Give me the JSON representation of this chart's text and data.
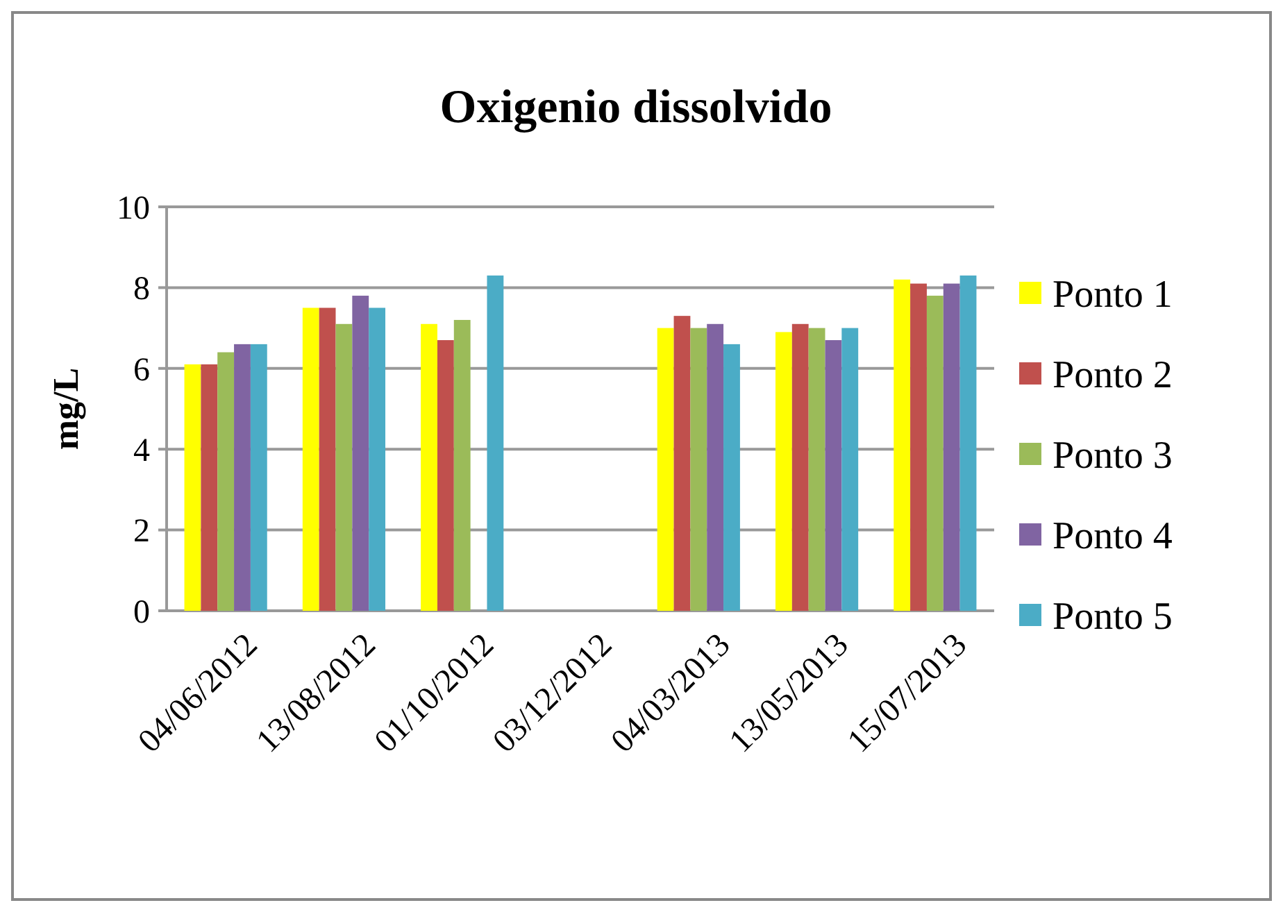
{
  "chart_data": {
    "type": "bar",
    "title": "Oxigenio dissolvido",
    "ylabel": "mg/L",
    "categories": [
      "04/06/2012",
      "13/08/2012",
      "01/10/2012",
      "03/12/2012",
      "04/03/2013",
      "13/05/2013",
      "15/07/2013"
    ],
    "series": [
      {
        "name": "Ponto 1",
        "color": "#ffff00",
        "values": [
          6.1,
          7.5,
          7.1,
          null,
          7.0,
          6.9,
          8.2
        ]
      },
      {
        "name": "Ponto 2",
        "color": "#c0504d",
        "values": [
          6.1,
          7.5,
          6.7,
          null,
          7.3,
          7.1,
          8.1
        ]
      },
      {
        "name": "Ponto 3",
        "color": "#9bbb59",
        "values": [
          6.4,
          7.1,
          7.2,
          null,
          7.0,
          7.0,
          7.8
        ]
      },
      {
        "name": "Ponto 4",
        "color": "#8064a2",
        "values": [
          6.6,
          7.8,
          null,
          null,
          7.1,
          6.7,
          8.1
        ]
      },
      {
        "name": "Ponto 5",
        "color": "#4bacc6",
        "values": [
          6.6,
          7.5,
          8.3,
          null,
          6.6,
          7.0,
          8.3
        ]
      }
    ],
    "ylim": [
      0,
      10
    ],
    "yticks": [
      0,
      2,
      4,
      6,
      8,
      10
    ],
    "grid": "y",
    "legend": "right"
  }
}
